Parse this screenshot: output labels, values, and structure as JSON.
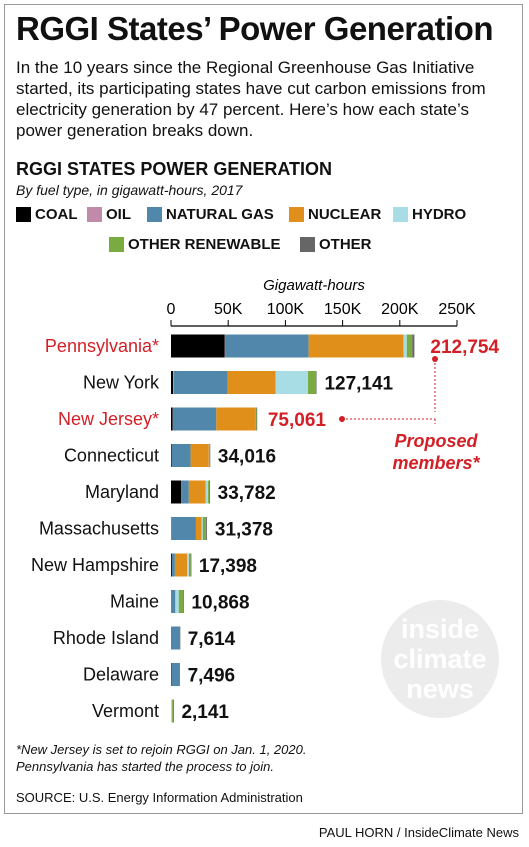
{
  "header": {
    "title": "RGGI States’ Power Generation",
    "intro": "In the 10 years since the Regional Greenhouse Gas Initiative started, its participating states have cut carbon emissions from electricity generation by 47 percent. Here’s how each state’s power generation breaks down."
  },
  "colors": {
    "highlight": "#d31f26",
    "axis": "#000000",
    "leader": "#d31f26"
  },
  "chart_data": {
    "type": "bar",
    "orientation": "horizontal",
    "stacked": true,
    "title": "RGGI STATES POWER GENERATION",
    "subtitle": "By fuel type, in gigawatt-hours, 2017",
    "xlabel": "Gigawatt-hours",
    "xlim": [
      0,
      250000
    ],
    "x_ticks": [
      {
        "value": 0,
        "label": "0"
      },
      {
        "value": 50000,
        "label": "50K"
      },
      {
        "value": 100000,
        "label": "100K"
      },
      {
        "value": 150000,
        "label": "150K"
      },
      {
        "value": 200000,
        "label": "200K"
      },
      {
        "value": 250000,
        "label": "250K"
      }
    ],
    "grid": false,
    "legend_position": "top",
    "categories": [
      "Pennsylvania*",
      "New York",
      "New Jersey*",
      "Connecticut",
      "Maryland",
      "Massachusetts",
      "New Hampshire",
      "Maine",
      "Rhode Island",
      "Delaware",
      "Vermont"
    ],
    "highlighted": [
      true,
      false,
      true,
      false,
      false,
      false,
      false,
      false,
      false,
      false,
      false
    ],
    "totals": [
      212754,
      127141,
      75061,
      34016,
      33782,
      31378,
      17398,
      10868,
      7614,
      7496,
      2141
    ],
    "total_labels": [
      "212,754",
      "127,141",
      "75,061",
      "34,016",
      "33,782",
      "31,378",
      "17,398",
      "10,868",
      "7,614",
      "7,496",
      "2,141"
    ],
    "series": [
      {
        "name": "COAL",
        "color": "#000000",
        "values": [
          47000,
          1800,
          1500,
          500,
          8800,
          0,
          800,
          0,
          0,
          200,
          0
        ]
      },
      {
        "name": "OIL",
        "color": "#c08aa8",
        "values": [
          300,
          700,
          100,
          100,
          100,
          300,
          100,
          100,
          0,
          0,
          0
        ]
      },
      {
        "name": "NATURAL GAS",
        "color": "#5187aa",
        "values": [
          73000,
          47000,
          38000,
          16500,
          6700,
          21500,
          2500,
          3700,
          7400,
          7000,
          0
        ]
      },
      {
        "name": "NUCLEAR",
        "color": "#e0901a",
        "values": [
          83000,
          42000,
          34500,
          16000,
          14800,
          5000,
          10600,
          0,
          0,
          0,
          0
        ]
      },
      {
        "name": "HYDRO",
        "color": "#a9dde5",
        "values": [
          2800,
          28300,
          0,
          300,
          2000,
          1000,
          1700,
          3000,
          0,
          0,
          1000
        ]
      },
      {
        "name": "OTHER RENEWABLE",
        "color": "#7aab40",
        "values": [
          4800,
          6900,
          700,
          400,
          1200,
          2700,
          1600,
          4000,
          200,
          100,
          1100
        ]
      },
      {
        "name": "OTHER",
        "color": "#666666",
        "values": [
          1854,
          441,
          261,
          216,
          182,
          878,
          98,
          68,
          14,
          196,
          41
        ]
      }
    ],
    "annotation": {
      "text_line1": "Proposed",
      "text_line2": "members*"
    }
  },
  "footer": {
    "footnote_line1": "*New Jersey is set to rejoin RGGI on Jan. 1, 2020.",
    "footnote_line2": "Pennsylvania has started the process to join.",
    "source": "SOURCE: U.S. Energy Information Administration",
    "credit": "PAUL HORN / InsideClimate News",
    "watermark_line1": "inside",
    "watermark_line2": "climate",
    "watermark_line3": "news"
  }
}
